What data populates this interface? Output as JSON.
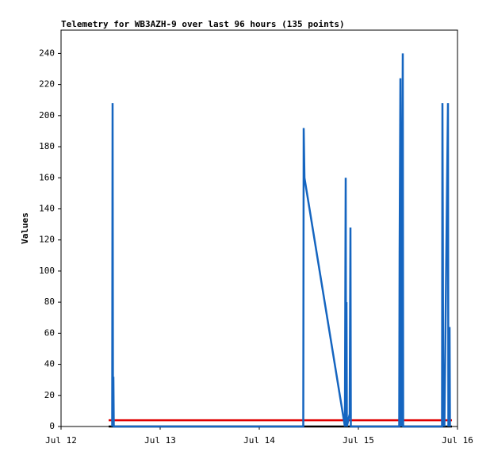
{
  "chart_data": {
    "type": "line",
    "title": "Telemetry for WB3AZH-9 over last 96 hours (135 points)",
    "y_label": "Values",
    "xlim": [
      0,
      4
    ],
    "xticks": [
      {
        "value": 0,
        "label": "Jul 12"
      },
      {
        "value": 1,
        "label": "Jul 13"
      },
      {
        "value": 2,
        "label": "Jul 14"
      },
      {
        "value": 3,
        "label": "Jul 15"
      },
      {
        "value": 4,
        "label": "Jul 16"
      }
    ],
    "ylim": [
      0,
      255
    ],
    "yticks": [
      0,
      20,
      40,
      60,
      80,
      100,
      120,
      140,
      160,
      180,
      200,
      220,
      240
    ],
    "series": [
      {
        "color": "#000000",
        "x": [
          0.48,
          3.944
        ],
        "values": [
          0,
          0
        ]
      },
      {
        "color": "#e00000",
        "x": [
          0.48,
          3.944
        ],
        "values": [
          4,
          4
        ]
      },
      {
        "color": "#1565c0",
        "x": [
          0.516,
          0.52,
          0.524,
          0.528,
          0.532,
          2.444,
          2.448,
          2.456,
          2.864,
          2.872,
          2.876,
          2.88,
          2.884,
          2.912,
          2.92,
          2.924,
          3.412,
          3.416,
          3.424,
          3.428,
          3.432,
          3.448,
          3.452,
          3.844,
          3.848,
          3.852,
          3.856,
          3.864,
          3.868,
          3.904,
          3.908,
          3.92,
          3.924
        ],
        "values": [
          0,
          208,
          0,
          32,
          0,
          0,
          192,
          160,
          0,
          160,
          0,
          80,
          0,
          8,
          128,
          0,
          0,
          112,
          224,
          112,
          0,
          240,
          0,
          0,
          208,
          128,
          0,
          32,
          0,
          208,
          0,
          64,
          0
        ]
      }
    ]
  }
}
